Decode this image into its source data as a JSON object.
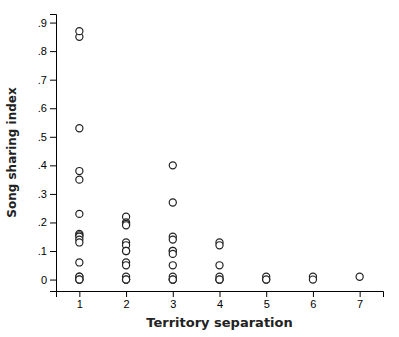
{
  "chart_data": {
    "type": "scatter",
    "xlabel": "Territory separation",
    "ylabel": "Song sharing index",
    "x": [
      1,
      1,
      1,
      1,
      1,
      1,
      1,
      1,
      1,
      1,
      1,
      1,
      1,
      1,
      1,
      1,
      1,
      2,
      2,
      2,
      2,
      2,
      2,
      2,
      2,
      2,
      2,
      2,
      2,
      2,
      2,
      3,
      3,
      3,
      3,
      3,
      3,
      3,
      3,
      3,
      3,
      3,
      3,
      4,
      4,
      4,
      4,
      4,
      4,
      4,
      5,
      5,
      5,
      6,
      6,
      7
    ],
    "values": [
      0.85,
      0.87,
      0.53,
      0.38,
      0.35,
      0.23,
      0.16,
      0.155,
      0.15,
      0.14,
      0.13,
      0.06,
      0.01,
      0.01,
      0.0,
      0.0,
      0.0,
      0.22,
      0.2,
      0.195,
      0.19,
      0.13,
      0.12,
      0.1,
      0.1,
      0.06,
      0.05,
      0.01,
      0.0,
      0.0,
      0.0,
      0.4,
      0.27,
      0.15,
      0.14,
      0.1,
      0.1,
      0.09,
      0.05,
      0.01,
      0.0,
      0.0,
      0.0,
      0.13,
      0.12,
      0.05,
      0.01,
      0.0,
      0.0,
      0.0,
      0.01,
      0.0,
      0.0,
      0.01,
      0.0,
      0.01
    ],
    "color": "#222222",
    "marker": "circle",
    "xlim": [
      0.5,
      7.5
    ],
    "ylim": [
      -0.04,
      0.93
    ],
    "xticks": [
      1,
      2,
      3,
      4,
      5,
      6,
      7
    ],
    "yticks": [
      0,
      {
        "value": 0.1,
        "label": ".1"
      },
      {
        "value": 0.2,
        "label": ".2"
      },
      {
        "value": 0.3,
        "label": ".3"
      },
      {
        "value": 0.4,
        "label": ".4"
      },
      {
        "value": 0.5,
        "label": ".5"
      },
      {
        "value": 0.6,
        "label": ".6"
      },
      {
        "value": 0.7,
        "label": ".7"
      },
      {
        "value": 0.8,
        "label": ".8"
      },
      {
        "value": 0.9,
        "label": ".9"
      }
    ]
  }
}
